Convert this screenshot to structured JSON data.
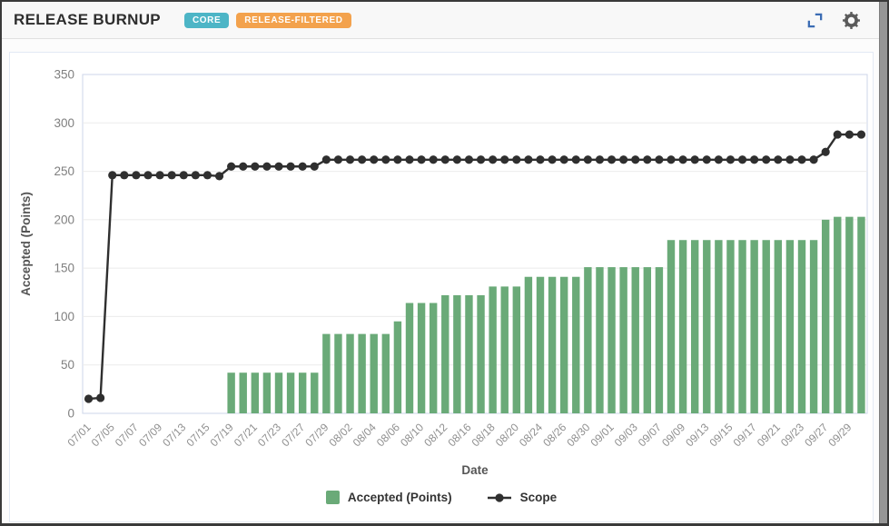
{
  "header": {
    "title": "RELEASE BURNUP",
    "badges": [
      {
        "label": "CORE",
        "color": "#4db5c6"
      },
      {
        "label": "RELEASE-FILTERED",
        "color": "#f3a24d"
      }
    ],
    "icons": [
      {
        "name": "expand-icon",
        "color": "#3b6cb4"
      },
      {
        "name": "gear-icon",
        "color": "#5a5a5a"
      }
    ]
  },
  "chart_data": {
    "type": "bar+line",
    "title": "RELEASE BURNUP",
    "xlabel": "Date",
    "ylabel": "Accepted (Points)",
    "ylim": [
      0,
      350
    ],
    "ytick_step": 50,
    "x_label_every": 2,
    "grid": "horizontal",
    "legend_position": "bottom",
    "categories": [
      "07/01",
      "07/02",
      "07/05",
      "07/06",
      "07/07",
      "07/08",
      "07/09",
      "07/12",
      "07/13",
      "07/14",
      "07/15",
      "07/16",
      "07/19",
      "07/20",
      "07/21",
      "07/22",
      "07/23",
      "07/26",
      "07/27",
      "07/28",
      "07/29",
      "07/30",
      "08/02",
      "08/03",
      "08/04",
      "08/05",
      "08/06",
      "08/09",
      "08/10",
      "08/11",
      "08/12",
      "08/13",
      "08/16",
      "08/17",
      "08/18",
      "08/19",
      "08/20",
      "08/23",
      "08/24",
      "08/25",
      "08/26",
      "08/27",
      "08/30",
      "08/31",
      "09/01",
      "09/02",
      "09/03",
      "09/06",
      "09/07",
      "09/08",
      "09/09",
      "09/10",
      "09/13",
      "09/14",
      "09/15",
      "09/16",
      "09/17",
      "09/20",
      "09/21",
      "09/22",
      "09/23",
      "09/24",
      "09/27",
      "09/28",
      "09/29",
      "09/30"
    ],
    "series": [
      {
        "name": "Accepted (Points)",
        "type": "bar",
        "color": "#6aaa78",
        "values": [
          0,
          0,
          0,
          0,
          0,
          0,
          0,
          0,
          0,
          0,
          0,
          0,
          42,
          42,
          42,
          42,
          42,
          42,
          42,
          42,
          82,
          82,
          82,
          82,
          82,
          82,
          95,
          114,
          114,
          114,
          122,
          122,
          122,
          122,
          131,
          131,
          131,
          141,
          141,
          141,
          141,
          141,
          151,
          151,
          151,
          151,
          151,
          151,
          151,
          179,
          179,
          179,
          179,
          179,
          179,
          179,
          179,
          179,
          179,
          179,
          179,
          179,
          200,
          203,
          203,
          203
        ]
      },
      {
        "name": "Scope",
        "type": "line",
        "color": "#2f2f2f",
        "values": [
          15,
          16,
          246,
          246,
          246,
          246,
          246,
          246,
          246,
          246,
          246,
          245,
          255,
          255,
          255,
          255,
          255,
          255,
          255,
          255,
          262,
          262,
          262,
          262,
          262,
          262,
          262,
          262,
          262,
          262,
          262,
          262,
          262,
          262,
          262,
          262,
          262,
          262,
          262,
          262,
          262,
          262,
          262,
          262,
          262,
          262,
          262,
          262,
          262,
          262,
          262,
          262,
          262,
          262,
          262,
          262,
          262,
          262,
          262,
          262,
          262,
          262,
          270,
          288,
          288,
          288
        ]
      }
    ]
  }
}
